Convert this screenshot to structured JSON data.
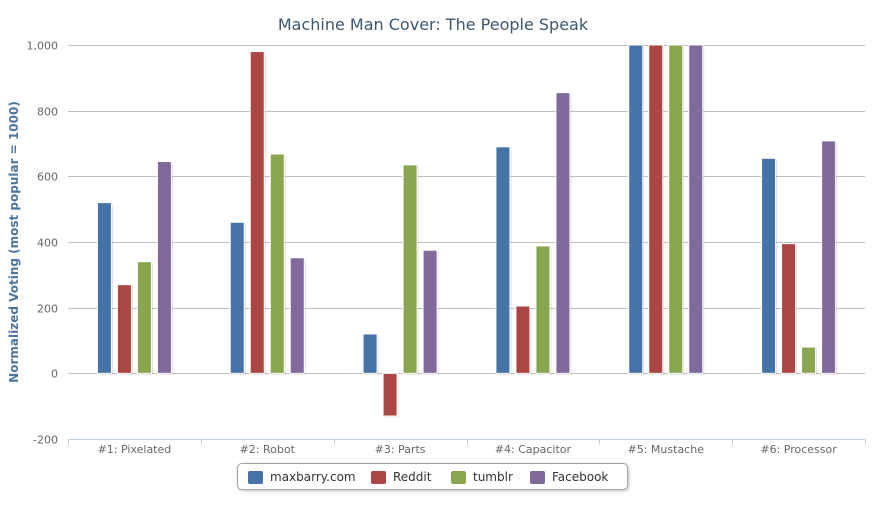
{
  "chart_data": {
    "type": "bar",
    "title": "Machine Man Cover: The People Speak",
    "ylabel": "Normalized Voting (most popular = 1000)",
    "xlabel": "",
    "ylim": [
      -200,
      1000
    ],
    "yticks": [
      "-200",
      "0",
      "200",
      "400",
      "600",
      "800",
      "1,000"
    ],
    "ytick_values": [
      -200,
      0,
      200,
      400,
      600,
      800,
      1000
    ],
    "grid": true,
    "legend_position": "bottom-center",
    "categories": [
      "#1: Pixelated",
      "#2: Robot",
      "#3: Parts",
      "#4: Capacitor",
      "#5: Mustache",
      "#6: Processor"
    ],
    "series": [
      {
        "name": "maxbarry.com",
        "color": "#4572a7",
        "values": [
          520,
          460,
          120,
          690,
          1000,
          655
        ]
      },
      {
        "name": "Reddit",
        "color": "#aa4643",
        "values": [
          270,
          980,
          -130,
          205,
          1000,
          395
        ]
      },
      {
        "name": "tumblr",
        "color": "#89a54e",
        "values": [
          340,
          668,
          635,
          388,
          1000,
          80
        ]
      },
      {
        "name": "Facebook",
        "color": "#80699b",
        "values": [
          645,
          352,
          375,
          855,
          1000,
          708
        ]
      }
    ]
  }
}
